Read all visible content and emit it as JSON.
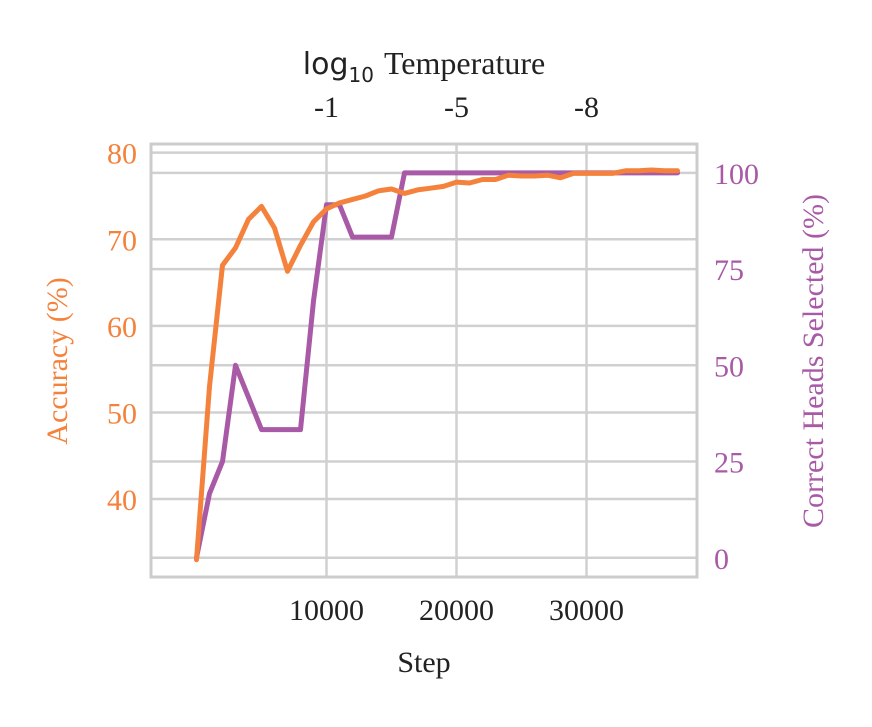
{
  "chart_data": {
    "type": "line",
    "title": "",
    "xlabel": "Step",
    "ylabel_left": "Accuracy (%)",
    "ylabel_right": "Correct Heads Selected (%)",
    "top_axis_label": {
      "prefix": "log",
      "subscript": "10",
      "rest": "Temperature"
    },
    "xlim": [
      -3500,
      38500
    ],
    "ylim_left": [
      31,
      81
    ],
    "ylim_right": [
      -5,
      107.5
    ],
    "x_ticks": [
      10000,
      20000,
      30000
    ],
    "x_tick_labels": [
      "10000",
      "20000",
      "30000"
    ],
    "y_left_ticks": [
      40,
      50,
      60,
      70,
      80
    ],
    "y_left_tick_labels": [
      "40",
      "50",
      "60",
      "70",
      "80"
    ],
    "y_right_ticks": [
      0,
      25,
      50,
      75,
      100
    ],
    "y_right_tick_labels": [
      "0",
      "25",
      "50",
      "75",
      "100"
    ],
    "top_ticks": [
      10000,
      20000,
      30000
    ],
    "top_tick_labels": [
      "-1",
      "-5",
      "-8"
    ],
    "grid": true,
    "colors": {
      "accuracy": "#f4823c",
      "heads": "#a85aa6",
      "grid": "#d0d0d0",
      "frame": "#cccccc",
      "text": "#222222"
    },
    "series": [
      {
        "name": "Accuracy (%)",
        "axis": "left",
        "x": [
          0,
          1000,
          2000,
          3000,
          4000,
          5000,
          6000,
          7000,
          8000,
          9000,
          10000,
          11000,
          12000,
          13000,
          14000,
          15000,
          16000,
          17000,
          18000,
          19000,
          20000,
          21000,
          22000,
          23000,
          24000,
          25000,
          26000,
          27000,
          28000,
          29000,
          30000,
          31000,
          32000,
          33000,
          34000,
          35000,
          36000,
          37000
        ],
        "values": [
          33,
          53,
          67,
          69,
          72.3,
          73.8,
          71.3,
          66.3,
          69.3,
          72,
          73.5,
          74.2,
          74.6,
          75,
          75.6,
          75.8,
          75.3,
          75.7,
          75.9,
          76.1,
          76.6,
          76.5,
          76.9,
          76.9,
          77.4,
          77.3,
          77.3,
          77.4,
          77.1,
          77.6,
          77.6,
          77.6,
          77.6,
          77.9,
          77.9,
          78,
          77.9,
          77.9
        ]
      },
      {
        "name": "Correct Heads Selected (%)",
        "axis": "right",
        "x": [
          0,
          1000,
          2000,
          3000,
          4000,
          5000,
          6000,
          7000,
          8000,
          9000,
          10000,
          11000,
          12000,
          13000,
          14000,
          15000,
          16000,
          17000,
          18000,
          19000,
          20000,
          22000,
          24000,
          26000,
          28000,
          30000,
          32000,
          34000,
          36000,
          37000
        ],
        "values": [
          0,
          16.7,
          25,
          50,
          41.7,
          33.3,
          33.3,
          33.3,
          33.3,
          66.7,
          91.7,
          91.7,
          83.3,
          83.3,
          83.3,
          83.3,
          100,
          100,
          100,
          100,
          100,
          100,
          100,
          100,
          100,
          100,
          100,
          100,
          100,
          100
        ]
      }
    ]
  }
}
